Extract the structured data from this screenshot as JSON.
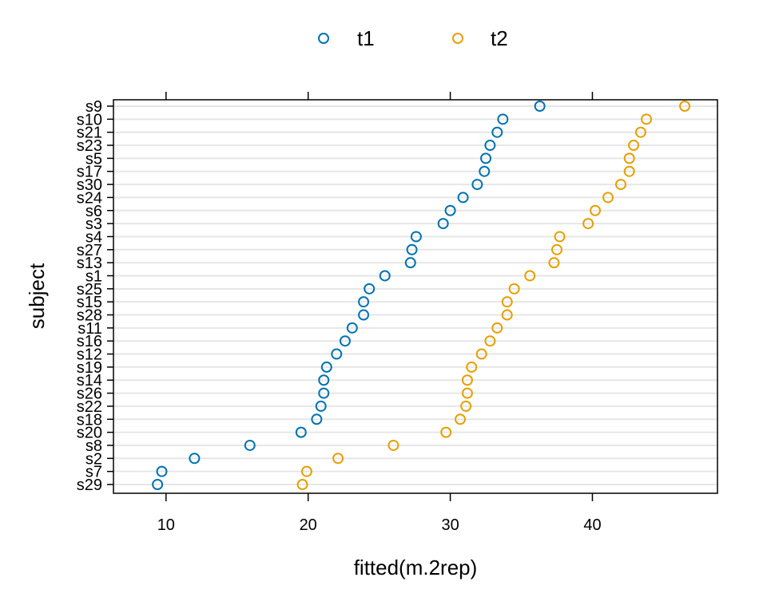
{
  "chart_data": {
    "type": "scatter",
    "title": "",
    "xlabel": "fitted(m.2rep)",
    "ylabel": "subject",
    "xlim": [
      6.3,
      48.8
    ],
    "xticks": [
      10,
      20,
      30,
      40
    ],
    "grid": true,
    "legend": "top",
    "categories": [
      "s9",
      "s10",
      "s21",
      "s23",
      "s5",
      "s17",
      "s30",
      "s24",
      "s6",
      "s3",
      "s4",
      "s27",
      "s13",
      "s1",
      "s25",
      "s15",
      "s28",
      "s11",
      "s16",
      "s12",
      "s19",
      "s14",
      "s26",
      "s22",
      "s18",
      "s20",
      "s8",
      "s2",
      "s7",
      "s29"
    ],
    "series": [
      {
        "name": "t1",
        "color": "#0072B2",
        "values": [
          36.3,
          33.7,
          33.3,
          32.8,
          32.5,
          32.4,
          31.9,
          30.9,
          30.0,
          29.5,
          27.6,
          27.3,
          27.2,
          25.4,
          24.3,
          23.9,
          23.9,
          23.1,
          22.6,
          22.0,
          21.3,
          21.1,
          21.1,
          20.9,
          20.6,
          19.5,
          15.9,
          12.0,
          9.7,
          9.4
        ]
      },
      {
        "name": "t2",
        "color": "#E69F00",
        "values": [
          46.5,
          43.8,
          43.4,
          42.9,
          42.6,
          42.6,
          42.0,
          41.1,
          40.2,
          39.7,
          37.7,
          37.5,
          37.3,
          35.6,
          34.5,
          34.0,
          34.0,
          33.3,
          32.8,
          32.2,
          31.5,
          31.2,
          31.2,
          31.1,
          30.7,
          29.7,
          26.0,
          22.1,
          19.9,
          19.6
        ]
      }
    ]
  }
}
